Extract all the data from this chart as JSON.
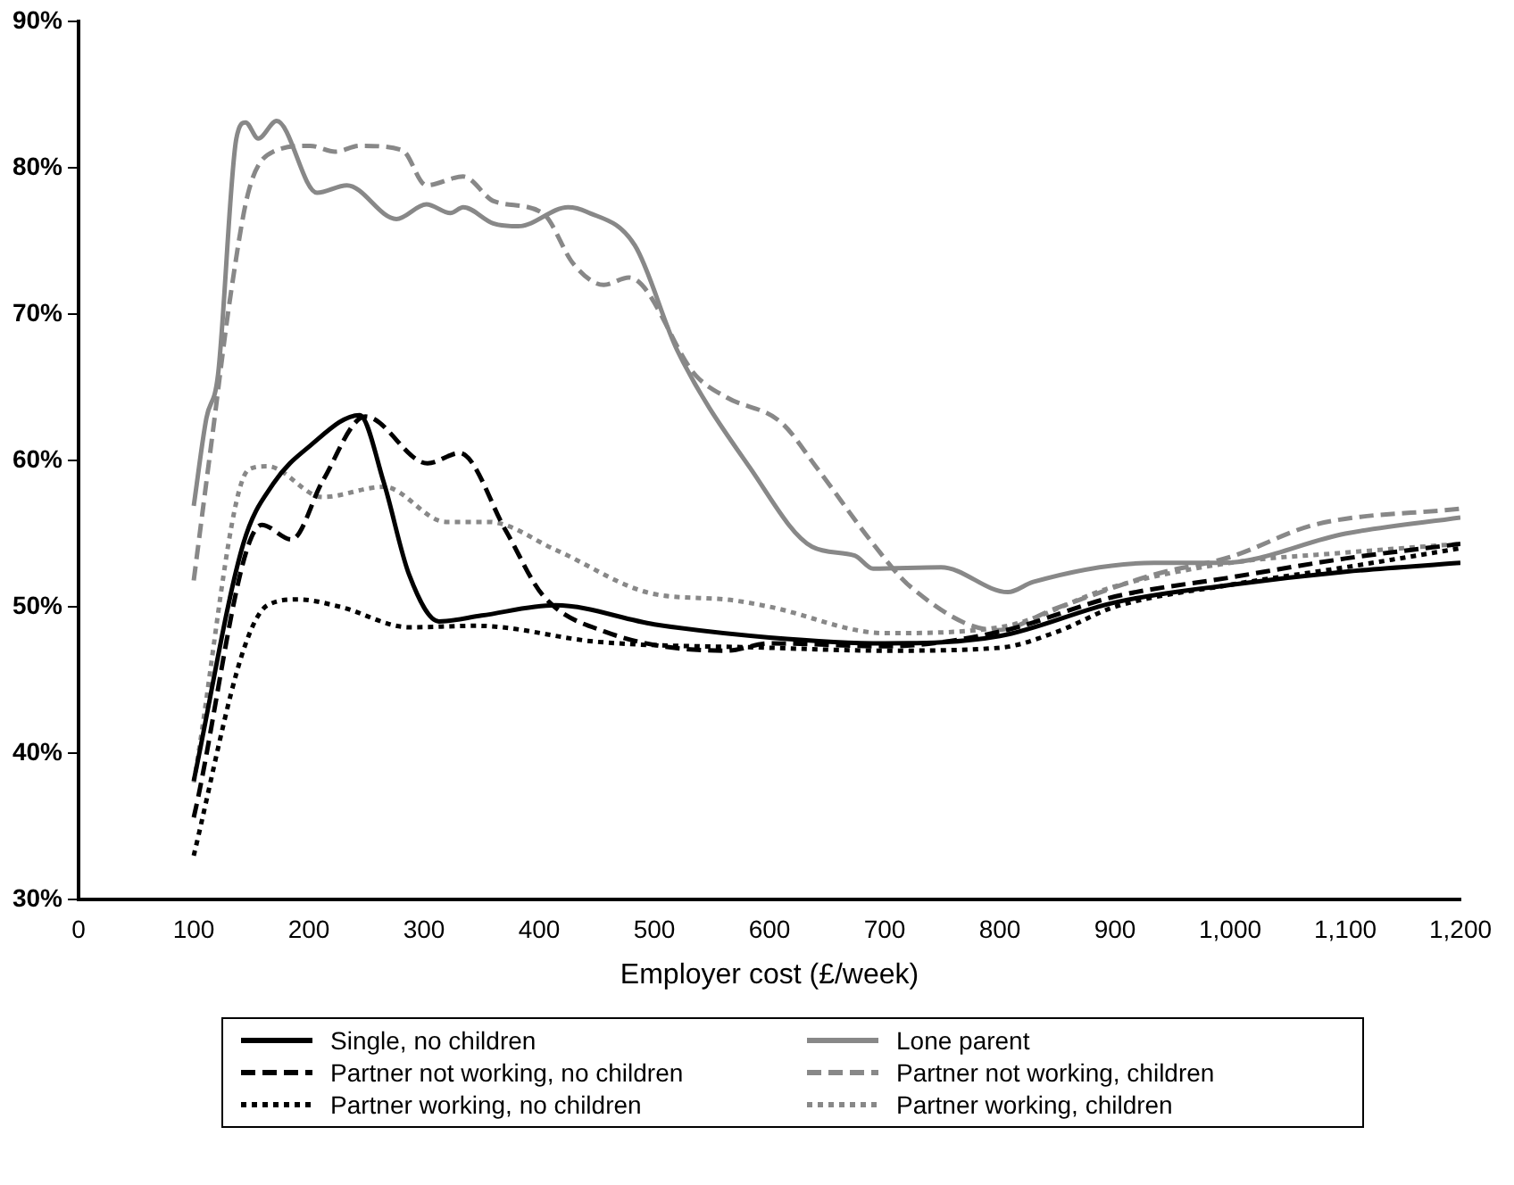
{
  "chart_data": {
    "type": "line",
    "xlabel": "Employer cost (£/week)",
    "xlim": [
      0,
      1200
    ],
    "xticks": [
      0,
      100,
      200,
      300,
      400,
      500,
      600,
      700,
      800,
      900,
      {
        "value": 1000,
        "label": "1,000"
      },
      {
        "value": 1100,
        "label": "1,100"
      },
      {
        "value": 1200,
        "label": "1,200"
      }
    ],
    "ylim": [
      30,
      90
    ],
    "yticks": [
      {
        "value": 30,
        "label": "30%"
      },
      {
        "value": 40,
        "label": "40%"
      },
      {
        "value": 50,
        "label": "50%"
      },
      {
        "value": 60,
        "label": "60%"
      },
      {
        "value": 70,
        "label": "70%"
      },
      {
        "value": 80,
        "label": "80%"
      },
      {
        "value": 90,
        "label": "90%"
      }
    ],
    "grid": false,
    "legend": "bottom",
    "marker": "none",
    "series": [
      {
        "name": "Single, no children",
        "color": "#000000",
        "line_style": "solid",
        "x": [
          100,
          143,
          169,
          201,
          244,
          265,
          287,
          313,
          350,
          414,
          500,
          600,
          700,
          800,
          900,
          1000,
          1100,
          1200
        ],
        "values": [
          38.1,
          54.3,
          58.4,
          61,
          63.1,
          58.5,
          52.2,
          49,
          49.4,
          50.1,
          48.8,
          47.9,
          47.5,
          48,
          50.3,
          51.5,
          52.4,
          53
        ]
      },
      {
        "name": "Lone parent",
        "color": "#888888",
        "line_style": "solid",
        "x": [
          100,
          111,
          121,
          137,
          145,
          156,
          172,
          207,
          233,
          276,
          302,
          323,
          334,
          360,
          382,
          425,
          441,
          483,
          520,
          583,
          637,
          674,
          690,
          749,
          807,
          829,
          934,
          993,
          1100,
          1200
        ],
        "values": [
          56.9,
          62.9,
          65.8,
          82,
          83.1,
          82,
          83.2,
          78.3,
          78.8,
          76.5,
          77.5,
          76.9,
          77.3,
          76.2,
          76,
          77.3,
          77,
          74.7,
          67.5,
          59.5,
          54.1,
          53.5,
          52.6,
          52.7,
          51,
          51.7,
          53,
          53,
          55,
          56.1
        ]
      },
      {
        "name": "Partner not working, no children",
        "color": "#000000",
        "line_style": "dashed",
        "x": [
          100,
          159,
          185,
          212,
          249,
          303,
          331,
          371,
          403,
          457,
          563,
          600,
          700,
          800,
          900,
          1000,
          1100,
          1200
        ],
        "values": [
          35.6,
          55.6,
          54.6,
          58.6,
          63,
          59.8,
          60.5,
          55.2,
          50.8,
          48.3,
          47,
          47.5,
          47.3,
          48.3,
          50.7,
          52,
          53.3,
          54.3
        ]
      },
      {
        "name": "Partner not working, children",
        "color": "#888888",
        "line_style": "dashed",
        "x": [
          100,
          116,
          132,
          148,
          169,
          201,
          223,
          244,
          281,
          302,
          334,
          361,
          403,
          430,
          456,
          478,
          536,
          563,
          610,
          642,
          690,
          722,
          797,
          849,
          934,
          1000,
          1073,
          1200
        ],
        "values": [
          51.8,
          61.6,
          71.3,
          78.5,
          81.1,
          81.5,
          81.1,
          81.5,
          81.2,
          78.8,
          79.4,
          77.7,
          76.9,
          73.4,
          72,
          72.5,
          65.8,
          64.3,
          62.6,
          59.4,
          54.3,
          51.4,
          48.4,
          49.9,
          52.2,
          53.4,
          55.6,
          56.7
        ]
      },
      {
        "name": "Partner working, no children",
        "color": "#000000",
        "line_style": "dotted",
        "x": [
          100,
          143,
          164,
          191,
          227,
          287,
          346,
          451,
          600,
          700,
          800,
          850,
          900,
          1000,
          1100,
          1200
        ],
        "values": [
          33,
          47,
          50.1,
          50.5,
          50,
          48.6,
          48.7,
          47.6,
          47.2,
          47,
          47.2,
          48.3,
          50,
          51.5,
          52.7,
          54
        ]
      },
      {
        "name": "Partner working, children",
        "color": "#888888",
        "line_style": "dotted",
        "x": [
          100,
          148,
          164,
          212,
          265,
          319,
          356,
          414,
          498,
          562,
          600,
          700,
          800,
          900,
          1000,
          1100,
          1200
        ],
        "values": [
          38,
          59.4,
          59.6,
          57.5,
          58.2,
          55.8,
          55.8,
          53.9,
          50.9,
          50.5,
          50,
          48.2,
          48.6,
          51.4,
          53,
          53.7,
          54.3
        ]
      }
    ]
  }
}
